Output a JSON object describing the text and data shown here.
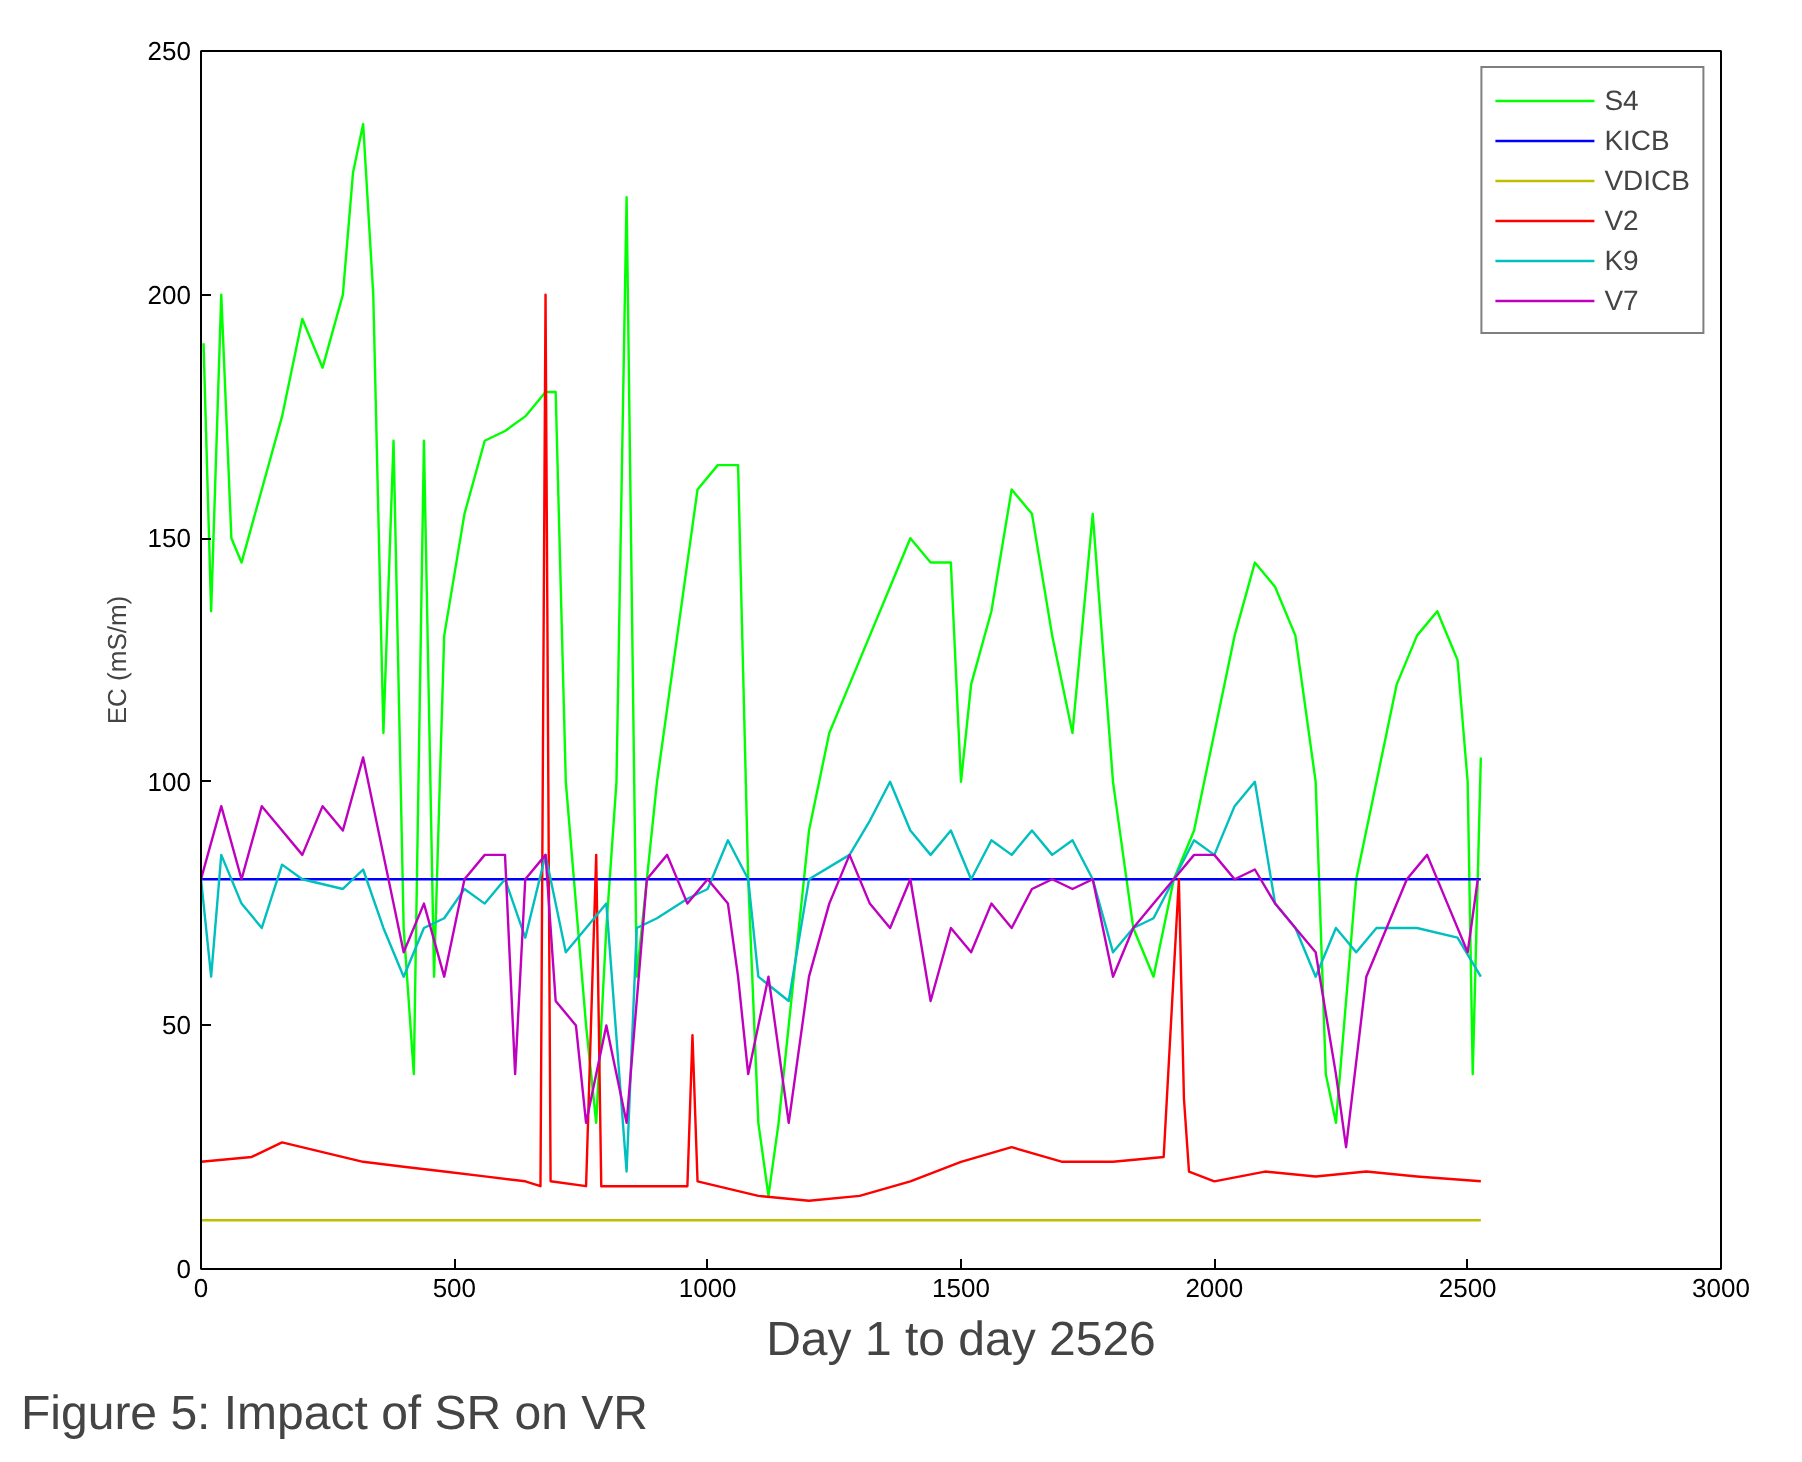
{
  "chart_data": {
    "type": "line",
    "xlabel": "Day 1 to day 2526",
    "ylabel": "EC (mS/m)",
    "annotations": [
      "Figure 5: Impact of SR on VR"
    ],
    "xlim": [
      0,
      3000
    ],
    "ylim": [
      0,
      250
    ],
    "xticks": [
      0,
      500,
      1000,
      1500,
      2000,
      2500,
      3000
    ],
    "yticks": [
      0,
      50,
      100,
      150,
      200,
      250
    ],
    "grid": false,
    "legend": "top right",
    "line_style": "solid",
    "marker": "none",
    "series": [
      {
        "name": "S4",
        "color": "#00ff00",
        "x": [
          5,
          20,
          40,
          60,
          80,
          120,
          160,
          200,
          240,
          280,
          300,
          320,
          340,
          360,
          380,
          400,
          420,
          440,
          460,
          480,
          520,
          560,
          600,
          640,
          680,
          700,
          720,
          760,
          780,
          800,
          820,
          840,
          860,
          900,
          940,
          980,
          1020,
          1060,
          1080,
          1100,
          1120,
          1140,
          1160,
          1200,
          1240,
          1280,
          1320,
          1360,
          1400,
          1440,
          1480,
          1500,
          1520,
          1560,
          1600,
          1640,
          1680,
          1720,
          1760,
          1800,
          1840,
          1880,
          1920,
          1960,
          2000,
          2040,
          2080,
          2120,
          2160,
          2200,
          2220,
          2240,
          2280,
          2320,
          2360,
          2400,
          2440,
          2480,
          2500,
          2510,
          2526
        ],
        "values": [
          190,
          135,
          200,
          150,
          145,
          160,
          175,
          195,
          185,
          200,
          225,
          235,
          200,
          110,
          170,
          70,
          40,
          170,
          60,
          130,
          155,
          170,
          172,
          175,
          180,
          180,
          100,
          50,
          30,
          70,
          100,
          220,
          60,
          100,
          130,
          160,
          165,
          165,
          80,
          30,
          15,
          30,
          50,
          90,
          110,
          120,
          130,
          140,
          150,
          145,
          145,
          100,
          120,
          135,
          160,
          155,
          130,
          110,
          155,
          100,
          70,
          60,
          80,
          90,
          110,
          130,
          145,
          140,
          130,
          100,
          40,
          30,
          80,
          100,
          120,
          130,
          135,
          125,
          100,
          40,
          105
        ]
      },
      {
        "name": "KICB",
        "color": "#0000ff",
        "x": [
          0,
          2526
        ],
        "values": [
          80,
          80
        ]
      },
      {
        "name": "VDICB",
        "color": "#bfbf00",
        "x": [
          0,
          2526
        ],
        "values": [
          10,
          10
        ]
      },
      {
        "name": "V2",
        "color": "#ff0000",
        "x": [
          0,
          100,
          160,
          240,
          320,
          400,
          480,
          560,
          640,
          670,
          680,
          690,
          760,
          780,
          790,
          960,
          970,
          980,
          1100,
          1200,
          1300,
          1400,
          1500,
          1600,
          1700,
          1800,
          1900,
          1930,
          1940,
          1950,
          2000,
          2100,
          2200,
          2300,
          2400,
          2526
        ],
        "values": [
          22,
          23,
          26,
          24,
          22,
          21,
          20,
          19,
          18,
          17,
          200,
          18,
          17,
          85,
          17,
          17,
          48,
          18,
          15,
          14,
          15,
          18,
          22,
          25,
          22,
          22,
          23,
          80,
          35,
          20,
          18,
          20,
          19,
          20,
          19,
          18
        ]
      },
      {
        "name": "K9",
        "color": "#00bfbf",
        "x": [
          0,
          20,
          40,
          80,
          120,
          160,
          200,
          280,
          320,
          360,
          400,
          440,
          480,
          520,
          560,
          600,
          640,
          680,
          720,
          760,
          800,
          840,
          860,
          900,
          960,
          1000,
          1040,
          1080,
          1100,
          1160,
          1200,
          1280,
          1320,
          1360,
          1400,
          1440,
          1480,
          1520,
          1560,
          1600,
          1640,
          1680,
          1720,
          1760,
          1800,
          1840,
          1880,
          1920,
          1960,
          2000,
          2040,
          2080,
          2120,
          2160,
          2200,
          2240,
          2280,
          2320,
          2400,
          2480,
          2526
        ],
        "values": [
          80,
          60,
          85,
          75,
          70,
          83,
          80,
          78,
          82,
          70,
          60,
          70,
          72,
          78,
          75,
          80,
          68,
          85,
          65,
          70,
          75,
          20,
          70,
          72,
          76,
          78,
          88,
          80,
          60,
          55,
          80,
          85,
          92,
          100,
          90,
          85,
          90,
          80,
          88,
          85,
          90,
          85,
          88,
          80,
          65,
          70,
          72,
          80,
          88,
          85,
          95,
          100,
          75,
          70,
          60,
          70,
          65,
          70,
          70,
          68,
          60
        ]
      },
      {
        "name": "V7",
        "color": "#bf00bf",
        "x": [
          0,
          40,
          80,
          120,
          160,
          200,
          240,
          280,
          320,
          360,
          400,
          440,
          480,
          520,
          560,
          600,
          620,
          640,
          680,
          700,
          740,
          760,
          800,
          840,
          880,
          920,
          960,
          1000,
          1040,
          1060,
          1080,
          1120,
          1160,
          1200,
          1240,
          1280,
          1320,
          1360,
          1400,
          1440,
          1480,
          1520,
          1560,
          1600,
          1640,
          1680,
          1720,
          1760,
          1800,
          1840,
          1880,
          1920,
          1960,
          2000,
          2040,
          2080,
          2120,
          2160,
          2200,
          2240,
          2260,
          2300,
          2340,
          2380,
          2420,
          2460,
          2500,
          2520
        ],
        "values": [
          80,
          95,
          80,
          95,
          90,
          85,
          95,
          90,
          105,
          85,
          65,
          75,
          60,
          80,
          85,
          85,
          40,
          80,
          85,
          55,
          50,
          30,
          50,
          30,
          80,
          85,
          75,
          80,
          75,
          60,
          40,
          60,
          30,
          60,
          75,
          85,
          75,
          70,
          80,
          55,
          70,
          65,
          75,
          70,
          78,
          80,
          78,
          80,
          60,
          70,
          75,
          80,
          85,
          85,
          80,
          82,
          75,
          70,
          65,
          40,
          25,
          60,
          70,
          80,
          85,
          75,
          65,
          80
        ]
      }
    ]
  }
}
